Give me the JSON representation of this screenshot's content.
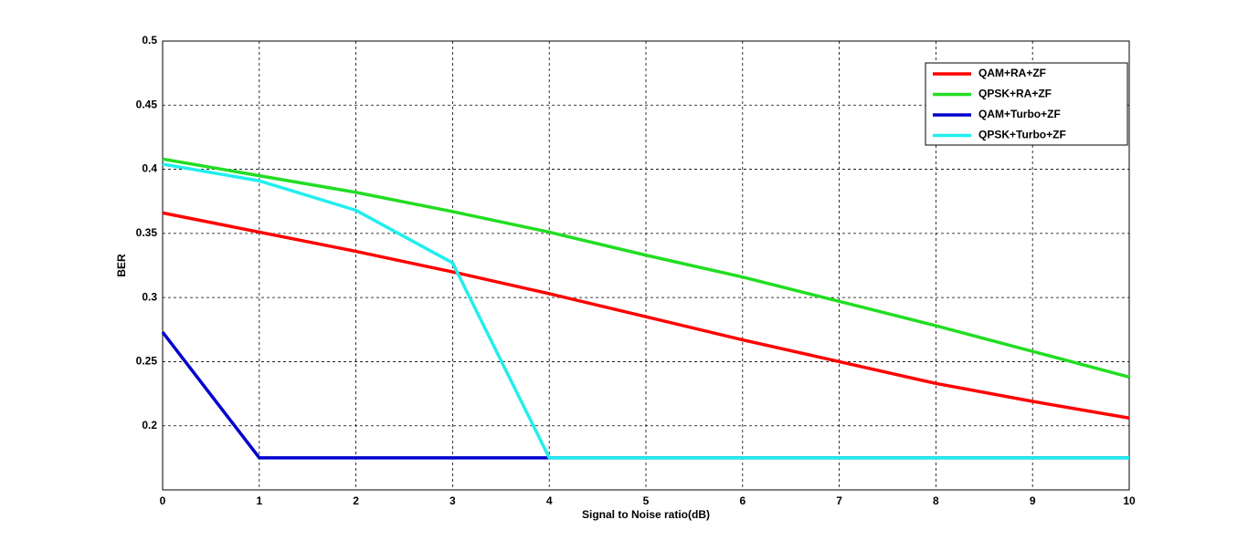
{
  "chart_data": {
    "type": "line",
    "xlabel": "Signal to Noise ratio(dB)",
    "ylabel": "BER",
    "x": [
      0,
      1,
      2,
      3,
      4,
      5,
      6,
      7,
      8,
      9,
      10
    ],
    "series": [
      {
        "name": "QAM+RA+ZF",
        "color": "#ff0000",
        "values": [
          0.366,
          0.351,
          0.336,
          0.32,
          0.303,
          0.285,
          0.267,
          0.25,
          0.233,
          0.219,
          0.206
        ]
      },
      {
        "name": "QPSK+RA+ZF",
        "color": "#22dd22",
        "values": [
          0.408,
          0.395,
          0.382,
          0.367,
          0.351,
          0.333,
          0.316,
          0.297,
          0.278,
          0.258,
          0.238
        ]
      },
      {
        "name": "QAM+Turbo+ZF",
        "color": "#0000cc",
        "values": [
          0.273,
          0.175,
          0.175,
          0.175,
          0.175,
          0.175,
          0.175,
          0.175,
          0.175,
          0.175,
          0.175
        ]
      },
      {
        "name": "QPSK+Turbo+ZF",
        "color": "#22eeee",
        "values": [
          0.404,
          0.391,
          0.368,
          0.327,
          0.175,
          0.175,
          0.175,
          0.175,
          0.175,
          0.175,
          0.175
        ]
      }
    ],
    "xlim": [
      0,
      10
    ],
    "xticks": [
      0,
      1,
      2,
      3,
      4,
      5,
      6,
      7,
      8,
      9,
      10
    ],
    "ylim": [
      0.15,
      0.5
    ],
    "yticks": [
      0.2,
      0.25,
      0.3,
      0.35,
      0.4,
      0.45,
      0.5
    ],
    "grid": true,
    "legend": "upper right"
  }
}
